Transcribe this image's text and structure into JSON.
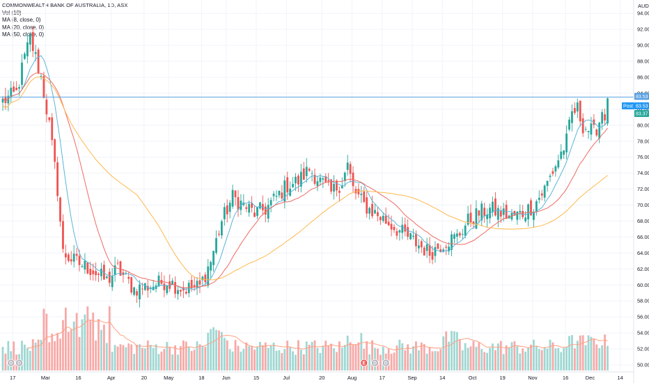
{
  "legend": {
    "title": "COMMONWEALTH BANK OF AUSTRALIA, 1D, ASX",
    "vol": "Vol (10)",
    "ma8": "MA (8, close, 0)",
    "ma20": "MA (20, close, 0)",
    "ma50": "MA (50, close, 0)"
  },
  "chart_data": {
    "type": "candlestick",
    "currency": "AUD",
    "y_ticks": [
      "94.00",
      "92.00",
      "90.00",
      "88.00",
      "86.00",
      "84.00",
      "82.00",
      "80.00",
      "78.00",
      "76.00",
      "74.00",
      "72.00",
      "70.00",
      "68.00",
      "66.00",
      "64.00",
      "62.00",
      "60.00",
      "58.00",
      "56.00",
      "54.00",
      "52.00",
      "50.00"
    ],
    "ylim": [
      49.3,
      95.5
    ],
    "x_ticks": [
      "17",
      "Mar",
      "16",
      "Apr",
      "20",
      "May",
      "18",
      "Jun",
      "15",
      "Jul",
      "20",
      "Aug",
      "17",
      "Sep",
      "14",
      "Oct",
      "19",
      "Nov",
      "16",
      "Dec",
      "14"
    ],
    "price_tags": {
      "high": "83.53",
      "post": "Post",
      "post_value": "83.53",
      "close": "83.37"
    },
    "price_line": 83.53,
    "events": [
      {
        "label": "D",
        "bar": 3
      },
      {
        "label": "D",
        "bar": 6
      },
      {
        "label": "E",
        "bar": 132
      },
      {
        "label": "D",
        "bar": 136
      },
      {
        "label": "D",
        "bar": 140
      }
    ],
    "anchors": [
      [
        0,
        83.0
      ],
      [
        5,
        84.0
      ],
      [
        8,
        88.5
      ],
      [
        10,
        90.8
      ],
      [
        12,
        88.5
      ],
      [
        14,
        86.0
      ],
      [
        17,
        80.0
      ],
      [
        20,
        72.0
      ],
      [
        22,
        64.0
      ],
      [
        26,
        63.0
      ],
      [
        32,
        62.0
      ],
      [
        38,
        60.5
      ],
      [
        42,
        62.0
      ],
      [
        48,
        59.5
      ],
      [
        55,
        60.0
      ],
      [
        60,
        60.5
      ],
      [
        66,
        59.5
      ],
      [
        72,
        59.8
      ],
      [
        76,
        63.0
      ],
      [
        80,
        68.0
      ],
      [
        84,
        71.0
      ],
      [
        88,
        70.0
      ],
      [
        92,
        69.0
      ],
      [
        96,
        69.5
      ],
      [
        100,
        71.0
      ],
      [
        104,
        72.5
      ],
      [
        108,
        73.0
      ],
      [
        112,
        74.5
      ],
      [
        116,
        73.0
      ],
      [
        120,
        71.5
      ],
      [
        124,
        73.0
      ],
      [
        126,
        75.0
      ],
      [
        128,
        72.0
      ],
      [
        132,
        70.0
      ],
      [
        136,
        69.0
      ],
      [
        140,
        68.0
      ],
      [
        144,
        67.0
      ],
      [
        148,
        66.0
      ],
      [
        152,
        65.0
      ],
      [
        156,
        64.0
      ],
      [
        158,
        64.5
      ],
      [
        162,
        65.5
      ],
      [
        166,
        66.0
      ],
      [
        170,
        68.0
      ],
      [
        174,
        69.0
      ],
      [
        178,
        69.5
      ],
      [
        182,
        69.0
      ],
      [
        186,
        68.5
      ],
      [
        190,
        69.0
      ],
      [
        194,
        70.0
      ],
      [
        198,
        72.0
      ],
      [
        202,
        75.0
      ],
      [
        206,
        78.0
      ],
      [
        208,
        81.5
      ],
      [
        210,
        82.0
      ],
      [
        212,
        80.0
      ],
      [
        214,
        79.5
      ],
      [
        216,
        79.0
      ],
      [
        218,
        80.5
      ],
      [
        220,
        83.3
      ]
    ],
    "volume": {
      "ylim": [
        0,
        80
      ]
    }
  }
}
